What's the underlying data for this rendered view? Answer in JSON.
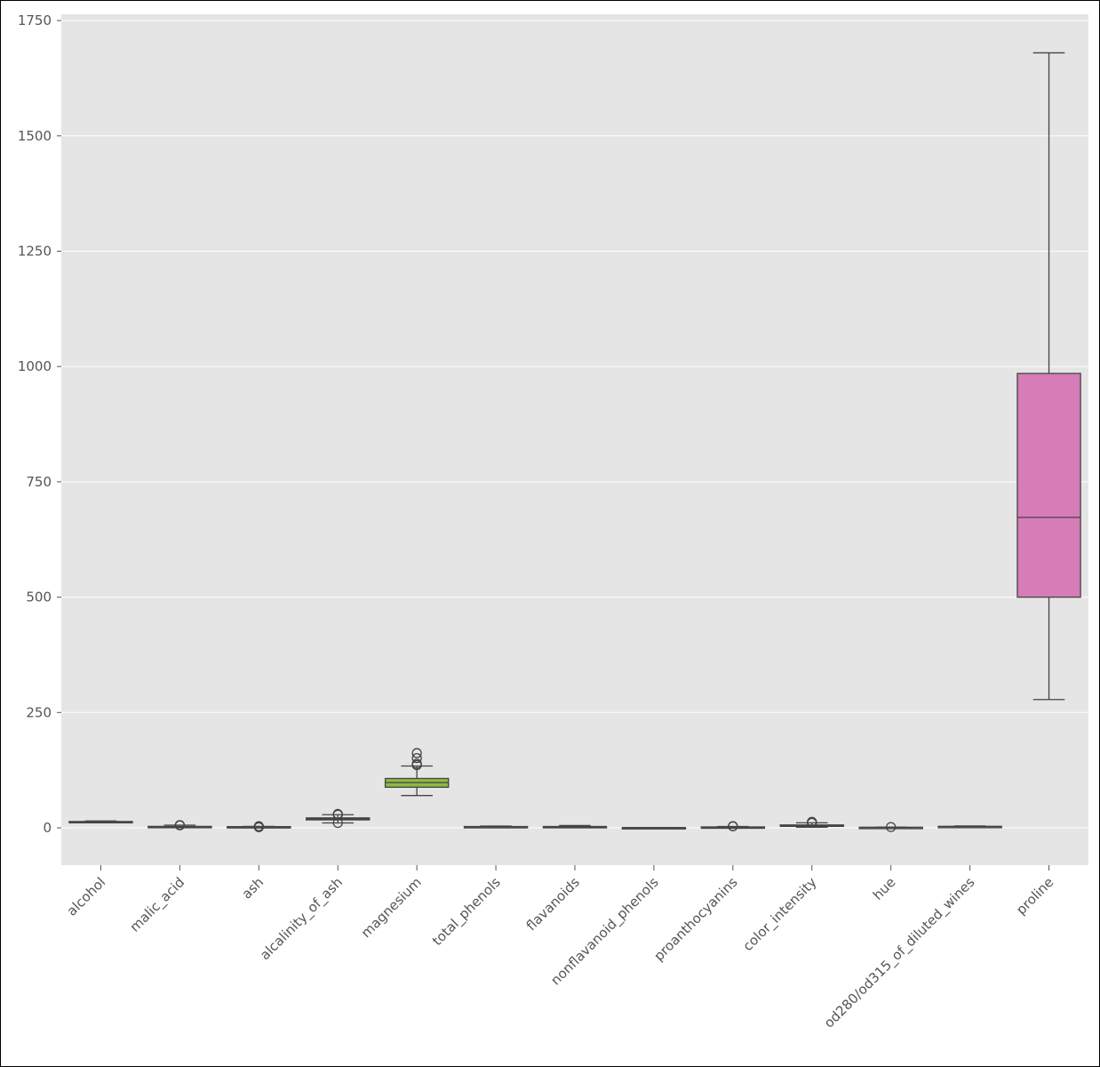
{
  "chart_data": {
    "type": "box",
    "title": "",
    "xlabel": "",
    "ylabel": "",
    "ylim": [
      -82,
      1760
    ],
    "yticks": [
      0,
      250,
      500,
      750,
      1000,
      1250,
      1500,
      1750
    ],
    "grid": true,
    "background": "#e5e5e5",
    "grid_color": "#ffffff",
    "categories": [
      "alcohol",
      "malic_acid",
      "ash",
      "alcalinity_of_ash",
      "magnesium",
      "total_phenols",
      "flavanoids",
      "nonflavanoid_phenols",
      "proanthocyanins",
      "color_intensity",
      "hue",
      "od280/od315_of_diluted_wines",
      "proline"
    ],
    "boxes": [
      {
        "min": 11.0,
        "q1": 12.4,
        "median": 13.0,
        "q3": 13.7,
        "max": 14.8,
        "outliers": [],
        "color": "#e24a33"
      },
      {
        "min": 0.7,
        "q1": 1.6,
        "median": 1.9,
        "q3": 3.1,
        "max": 5.8,
        "outliers": [
          5.8,
          5.65,
          5.51
        ],
        "color": "#348abd"
      },
      {
        "min": 1.7,
        "q1": 2.2,
        "median": 2.36,
        "q3": 2.56,
        "max": 3.1,
        "outliers": [
          1.36,
          3.22,
          3.23
        ],
        "color": "#988ed5"
      },
      {
        "min": 10.6,
        "q1": 17.2,
        "median": 19.5,
        "q3": 21.5,
        "max": 28.5,
        "outliers": [
          30,
          10.6,
          28.5
        ],
        "color": "#777777"
      },
      {
        "min": 70,
        "q1": 88,
        "median": 98,
        "q3": 107,
        "max": 134,
        "outliers": [
          136,
          139,
          151,
          162
        ],
        "color": "#8eba42"
      },
      {
        "min": 0.98,
        "q1": 1.74,
        "median": 2.36,
        "q3": 2.8,
        "max": 3.88,
        "outliers": [],
        "color": "#ffb5b8"
      },
      {
        "min": 0.34,
        "q1": 1.2,
        "median": 2.13,
        "q3": 2.88,
        "max": 5.08,
        "outliers": [],
        "color": "#e24a33"
      },
      {
        "min": 0.13,
        "q1": 0.27,
        "median": 0.34,
        "q3": 0.44,
        "max": 0.66,
        "outliers": [],
        "color": "#348abd"
      },
      {
        "min": 0.41,
        "q1": 1.25,
        "median": 1.56,
        "q3": 1.95,
        "max": 2.96,
        "outliers": [
          3.28,
          3.58
        ],
        "color": "#988ed5"
      },
      {
        "min": 1.28,
        "q1": 3.2,
        "median": 4.7,
        "q3": 6.2,
        "max": 10.8,
        "outliers": [
          10.8,
          11.75,
          13.0
        ],
        "color": "#777777"
      },
      {
        "min": 0.48,
        "q1": 0.78,
        "median": 0.96,
        "q3": 1.12,
        "max": 1.45,
        "outliers": [
          1.71
        ],
        "color": "#8eba42"
      },
      {
        "min": 1.27,
        "q1": 1.94,
        "median": 2.78,
        "q3": 3.17,
        "max": 4.0,
        "outliers": [],
        "color": "#ffb5b8"
      },
      {
        "min": 278,
        "q1": 500,
        "median": 673,
        "q3": 985,
        "max": 1680,
        "outliers": [],
        "color": "#d67cb7"
      }
    ]
  }
}
